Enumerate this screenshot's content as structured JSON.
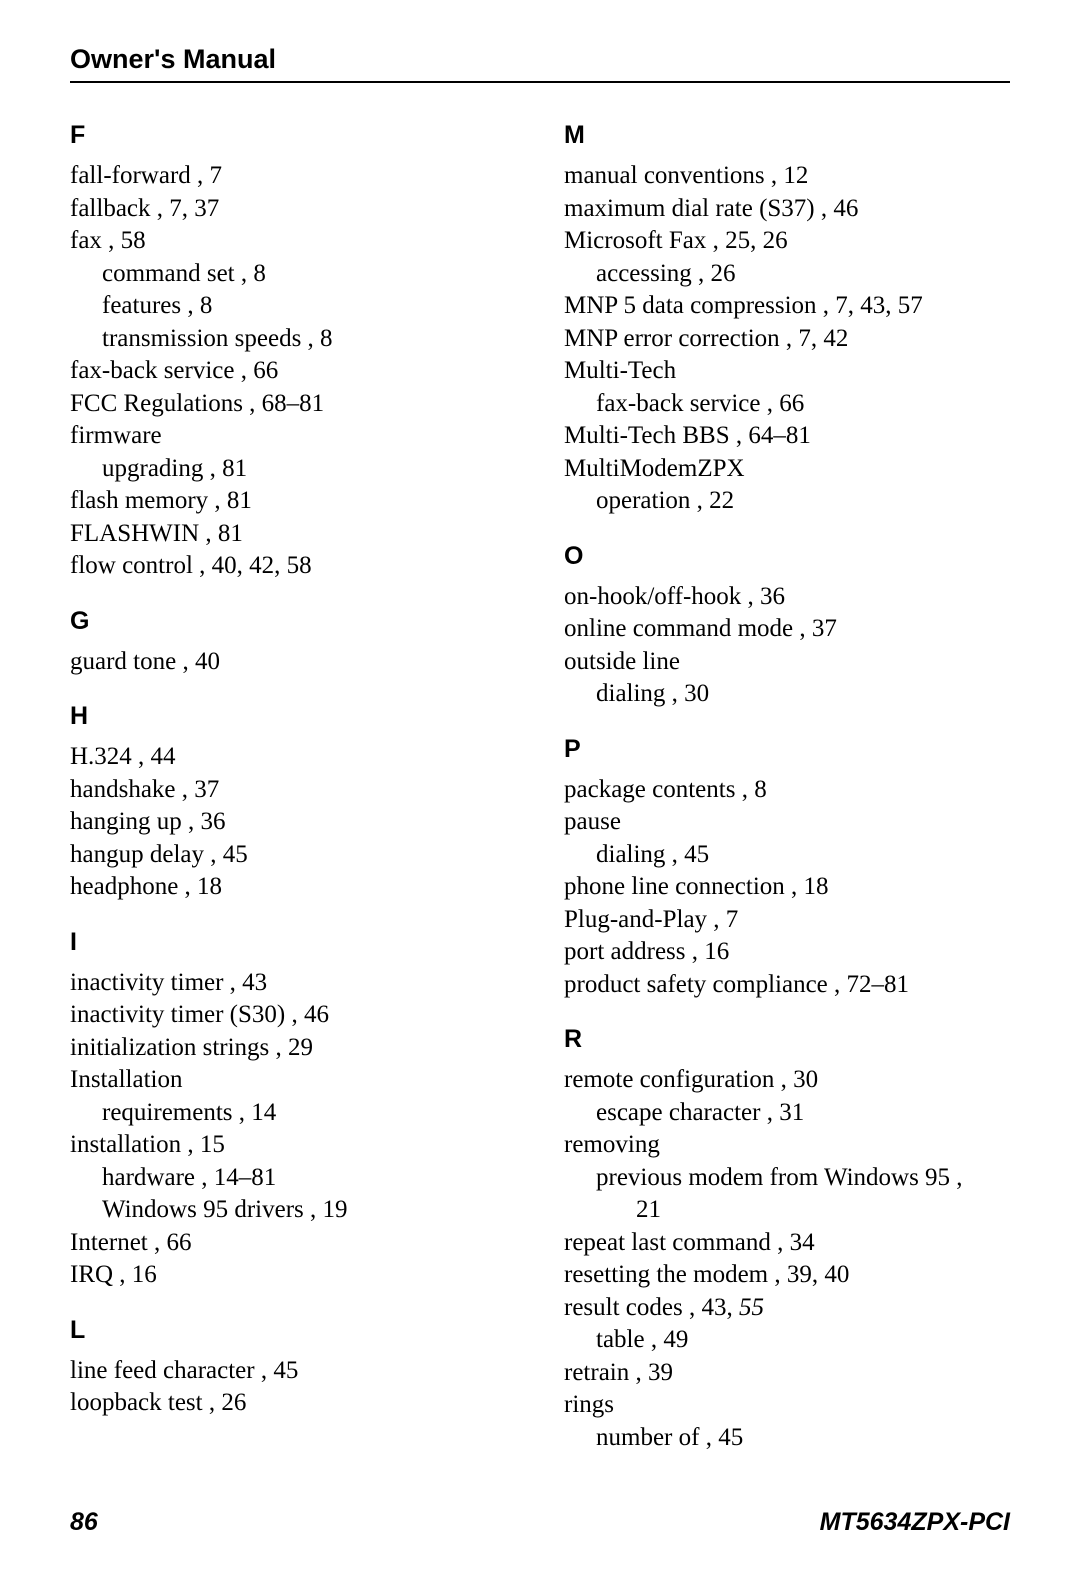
{
  "header": {
    "title": "Owner's Manual"
  },
  "footer": {
    "page": "86",
    "model": "MT5634ZPX-PCI"
  },
  "left": {
    "sections": [
      {
        "letter": "F",
        "entries": [
          {
            "text": "fall-forward ,  7",
            "indent": 0
          },
          {
            "text": "fallback ,  7,  37",
            "indent": 0
          },
          {
            "text": "fax ,  58",
            "indent": 0
          },
          {
            "text": "command set ,  8",
            "indent": 1
          },
          {
            "text": "features ,  8",
            "indent": 1
          },
          {
            "text": "transmission speeds ,  8",
            "indent": 1
          },
          {
            "text": "fax-back service ,  66",
            "indent": 0
          },
          {
            "text": "FCC Regulations ,  68–81",
            "indent": 0
          },
          {
            "text": "firmware",
            "indent": 0
          },
          {
            "text": "upgrading ,  81",
            "indent": 1
          },
          {
            "text": "flash memory ,  81",
            "indent": 0
          },
          {
            "text": "FLASHWIN ,  81",
            "indent": 0
          },
          {
            "text": "flow control ,  40,  42,  58",
            "indent": 0
          }
        ]
      },
      {
        "letter": "G",
        "entries": [
          {
            "text": "guard tone ,  40",
            "indent": 0
          }
        ]
      },
      {
        "letter": "H",
        "entries": [
          {
            "text": "H.324 ,  44",
            "indent": 0
          },
          {
            "text": "handshake ,  37",
            "indent": 0
          },
          {
            "text": "hanging up ,  36",
            "indent": 0
          },
          {
            "text": "hangup delay ,  45",
            "indent": 0
          },
          {
            "text": "headphone ,  18",
            "indent": 0
          }
        ]
      },
      {
        "letter": "I",
        "entries": [
          {
            "text": "inactivity timer ,  43",
            "indent": 0
          },
          {
            "text": "inactivity timer (S30) ,  46",
            "indent": 0
          },
          {
            "text": "initialization strings ,  29",
            "indent": 0
          },
          {
            "text": "Installation",
            "indent": 0
          },
          {
            "text": "requirements ,  14",
            "indent": 1
          },
          {
            "text": "installation ,  15",
            "indent": 0
          },
          {
            "text": "hardware ,  14–81",
            "indent": 1
          },
          {
            "text": "Windows 95 drivers ,  19",
            "indent": 1
          },
          {
            "text": "Internet ,  66",
            "indent": 0
          },
          {
            "text": "IRQ ,  16",
            "indent": 0
          }
        ]
      },
      {
        "letter": "L",
        "entries": [
          {
            "text": "line feed character ,  45",
            "indent": 0
          },
          {
            "text": "loopback test ,  26",
            "indent": 0
          }
        ]
      }
    ]
  },
  "right": {
    "sections": [
      {
        "letter": "M",
        "entries": [
          {
            "text": "manual conventions ,  12",
            "indent": 0
          },
          {
            "text": "maximum dial rate (S37) ,  46",
            "indent": 0
          },
          {
            "text": "Microsoft Fax ,  25,  26",
            "indent": 0
          },
          {
            "text": "accessing ,  26",
            "indent": 1
          },
          {
            "text": "MNP 5 data compression ,  7,  43,  57",
            "indent": 0
          },
          {
            "text": "MNP error correction ,  7,  42",
            "indent": 0
          },
          {
            "text": "Multi-Tech",
            "indent": 0
          },
          {
            "text": "fax-back service ,  66",
            "indent": 1
          },
          {
            "text": "Multi-Tech BBS ,  64–81",
            "indent": 0
          },
          {
            "text": "MultiModemZPX",
            "indent": 0
          },
          {
            "text": "operation ,  22",
            "indent": 1
          }
        ]
      },
      {
        "letter": "O",
        "entries": [
          {
            "text": "on-hook/off-hook ,  36",
            "indent": 0
          },
          {
            "text": "online command mode ,  37",
            "indent": 0
          },
          {
            "text": "outside line",
            "indent": 0
          },
          {
            "text": "dialing ,  30",
            "indent": 1
          }
        ]
      },
      {
        "letter": "P",
        "entries": [
          {
            "text": "package contents ,  8",
            "indent": 0
          },
          {
            "text": "pause",
            "indent": 0
          },
          {
            "text": "dialing ,  45",
            "indent": 1
          },
          {
            "text": "phone line connection ,  18",
            "indent": 0
          },
          {
            "text": "Plug-and-Play ,  7",
            "indent": 0
          },
          {
            "text": "port address ,  16",
            "indent": 0
          },
          {
            "text": "product safety compliance ,  72–81",
            "indent": 0
          }
        ]
      },
      {
        "letter": "R",
        "entries": [
          {
            "text": "remote configuration ,  30",
            "indent": 0
          },
          {
            "text": "escape character ,  31",
            "indent": 1
          },
          {
            "text": "removing",
            "indent": 0
          },
          {
            "text": "previous modem from Windows 95 ,",
            "indent": 1
          },
          {
            "text": "21",
            "indent": 2
          },
          {
            "text": "repeat last command ,  34",
            "indent": 0
          },
          {
            "text": "resetting the modem ,  39,  40",
            "indent": 0
          },
          {
            "text": "result codes ,  43,  ",
            "indent": 0,
            "italic_suffix": "55"
          },
          {
            "text": "table ,  49",
            "indent": 1
          },
          {
            "text": "retrain ,  39",
            "indent": 0
          },
          {
            "text": "rings",
            "indent": 0
          },
          {
            "text": "number of ,  45",
            "indent": 1
          }
        ]
      }
    ]
  }
}
